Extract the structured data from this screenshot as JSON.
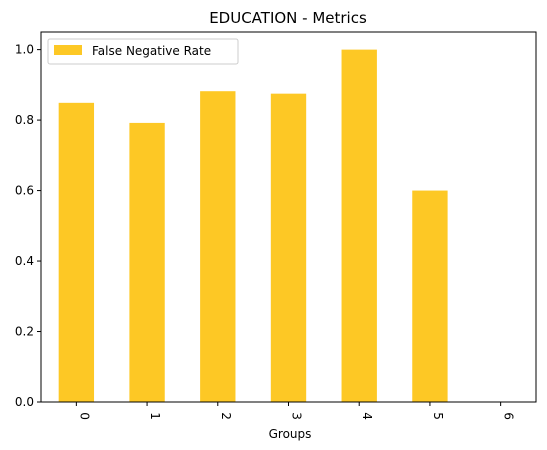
{
  "chart_data": {
    "type": "bar",
    "title": "EDUCATION - Metrics",
    "xlabel": "Groups",
    "ylabel": "",
    "categories": [
      "0",
      "1",
      "2",
      "3",
      "4",
      "5",
      "6"
    ],
    "series": [
      {
        "name": "False Negative Rate",
        "values": [
          0.849,
          0.792,
          0.882,
          0.875,
          1.0,
          0.6,
          0.0
        ],
        "color": "#fdc825"
      }
    ],
    "ylim": [
      0,
      1.05
    ],
    "yticks": [
      "0.0",
      "0.2",
      "0.4",
      "0.6",
      "0.8",
      "1.0"
    ],
    "grid": false,
    "legend_position": "upper-left"
  }
}
